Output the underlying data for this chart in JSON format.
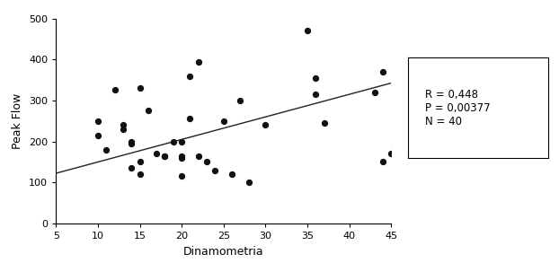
{
  "x_data": [
    10,
    10,
    11,
    12,
    13,
    13,
    14,
    14,
    14,
    15,
    15,
    15,
    16,
    17,
    18,
    18,
    19,
    20,
    20,
    20,
    20,
    21,
    21,
    22,
    22,
    23,
    24,
    25,
    26,
    27,
    28,
    30,
    35,
    36,
    36,
    37,
    43,
    44,
    44,
    45
  ],
  "y_data": [
    250,
    215,
    180,
    325,
    230,
    240,
    195,
    200,
    135,
    150,
    120,
    330,
    275,
    170,
    165,
    165,
    200,
    200,
    165,
    160,
    115,
    360,
    255,
    395,
    165,
    150,
    130,
    250,
    120,
    300,
    100,
    240,
    470,
    315,
    355,
    245,
    320,
    370,
    150,
    170
  ],
  "line_x": [
    5,
    45
  ],
  "line_y_intercept": 95,
  "line_slope": 5.5,
  "xlabel": "Dinamometria",
  "ylabel": "Peak Flow",
  "xlim": [
    5,
    45
  ],
  "ylim": [
    0,
    500
  ],
  "xticks": [
    5,
    10,
    15,
    20,
    25,
    30,
    35,
    40,
    45
  ],
  "yticks": [
    0,
    100,
    200,
    300,
    400,
    500
  ],
  "annotation_text": "R = 0,448\nP = 0,00377\nN = 40",
  "dot_color": "#111111",
  "line_color": "#222222",
  "bg_color": "#ffffff"
}
